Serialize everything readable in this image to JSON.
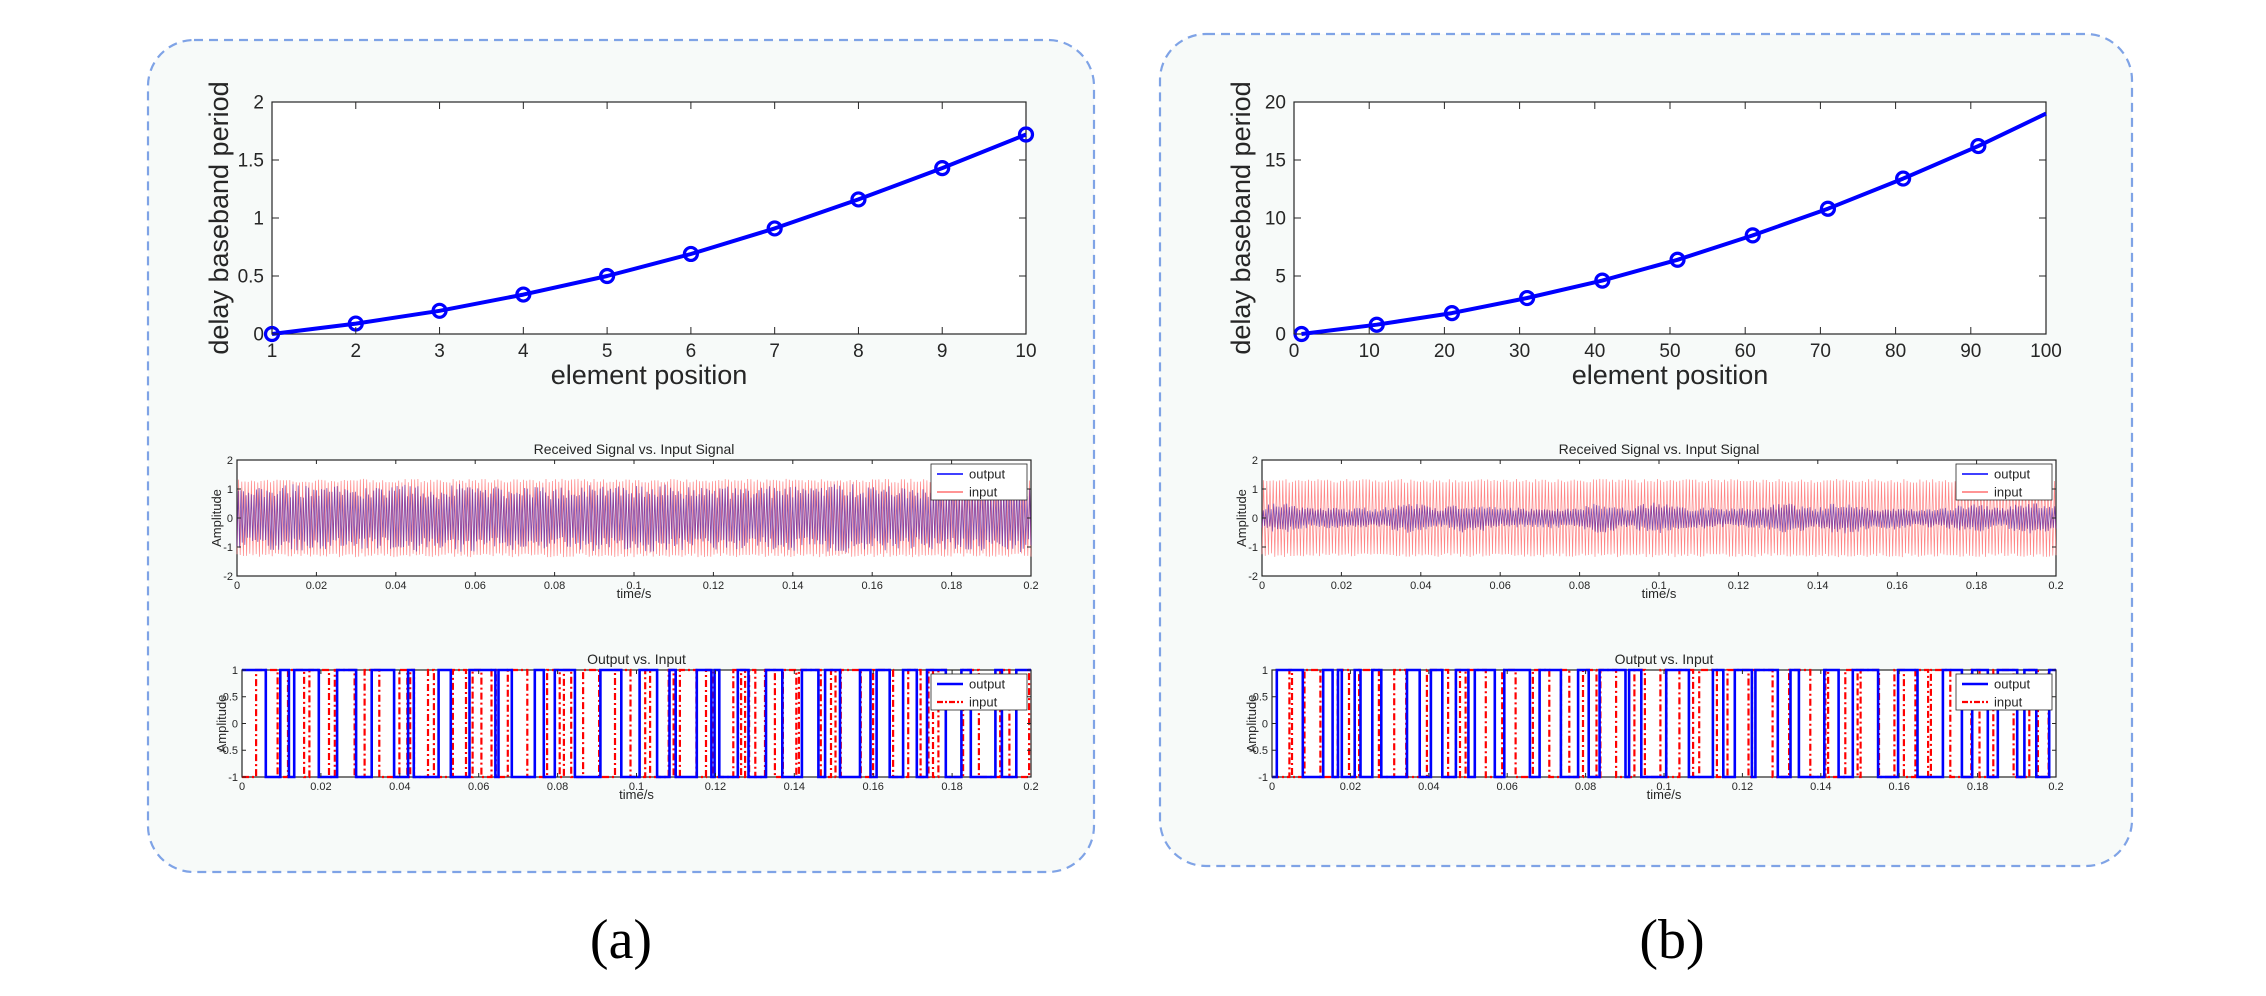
{
  "colors": {
    "panel_border": "#7fa3e6",
    "panel_fill": "#f7faf9",
    "series_blue": "#0000ff",
    "series_red": "#ff0000",
    "input_light": "#ff7070",
    "axis": "#262626"
  },
  "panels": [
    {
      "caption": "(a)",
      "chart_data": [
        {
          "type": "line",
          "title": "",
          "xlabel": "element position",
          "ylabel": "delay baseband period",
          "x": [
            1,
            2,
            3,
            4,
            5,
            6,
            7,
            8,
            9,
            10
          ],
          "series": [
            {
              "name": "delay",
              "marker": "o",
              "values": [
                0,
                0.09,
                0.2,
                0.34,
                0.5,
                0.69,
                0.91,
                1.16,
                1.43,
                1.72
              ]
            }
          ],
          "xlim": [
            1,
            10
          ],
          "ylim": [
            0,
            2
          ],
          "xticks": [
            "1",
            "2",
            "3",
            "4",
            "5",
            "6",
            "7",
            "8",
            "9",
            "10"
          ],
          "yticks": [
            "0",
            "0.5",
            "1",
            "1.5",
            "2"
          ]
        },
        {
          "type": "line",
          "title": "Received Signal vs. Input Signal",
          "xlabel": "time/s",
          "ylabel": "Amplitude",
          "xlim": [
            0,
            0.2
          ],
          "ylim": [
            -2,
            2
          ],
          "xticks": [
            "0",
            "0.02",
            "0.04",
            "0.06",
            "0.08",
            "0.1",
            "0.12",
            "0.14",
            "0.16",
            "0.18",
            "0.2"
          ],
          "yticks": [
            "-2",
            "-1",
            "0",
            "1",
            "2"
          ],
          "series": [
            {
              "name": "output",
              "style": "solid",
              "envelope_amplitude": [
                0.95,
                1.2
              ]
            },
            {
              "name": "input",
              "style": "solid",
              "envelope_amplitude": [
                1.35,
                1.35
              ]
            }
          ],
          "legend": "top-right",
          "legend_labels": [
            "output",
            "input"
          ]
        },
        {
          "type": "line",
          "title": "Output vs. Input",
          "xlabel": "time/s",
          "ylabel": "Amplitude",
          "xlim": [
            0,
            0.2
          ],
          "ylim": [
            -1,
            1
          ],
          "xticks": [
            "0",
            "0.02",
            "0.04",
            "0.06",
            "0.08",
            "0.1",
            "0.12",
            "0.14",
            "0.16",
            "0.18",
            "0.2"
          ],
          "yticks": [
            "-1",
            "-0.5",
            "0",
            "0.5",
            "1"
          ],
          "series": [
            {
              "name": "output",
              "style": "solid",
              "levels": [
                -1,
                1
              ]
            },
            {
              "name": "input",
              "style": "dash-dot",
              "levels": [
                -1,
                1
              ]
            }
          ],
          "legend": "top-right",
          "legend_labels": [
            "output",
            "input"
          ]
        }
      ]
    },
    {
      "caption": "(b)",
      "chart_data": [
        {
          "type": "line",
          "title": "",
          "xlabel": "element position",
          "ylabel": "delay baseband period",
          "x": [
            1,
            11,
            21,
            31,
            41,
            51,
            61,
            71,
            81,
            91,
            100
          ],
          "series": [
            {
              "name": "delay",
              "marker": "o",
              "marker_count": 10,
              "values": [
                0,
                0.8,
                1.8,
                3.1,
                4.6,
                6.4,
                8.5,
                10.8,
                13.4,
                16.2,
                19.0
              ]
            }
          ],
          "xlim": [
            0,
            100
          ],
          "ylim": [
            0,
            20
          ],
          "xticks": [
            "0",
            "10",
            "20",
            "30",
            "40",
            "50",
            "60",
            "70",
            "80",
            "90",
            "100"
          ],
          "yticks": [
            "0",
            "5",
            "10",
            "15",
            "20"
          ]
        },
        {
          "type": "line",
          "title": "Received Signal vs. Input Signal",
          "xlabel": "time/s",
          "ylabel": "Amplitude",
          "xlim": [
            0,
            0.2
          ],
          "ylim": [
            -2,
            2
          ],
          "xticks": [
            "0",
            "0.02",
            "0.04",
            "0.06",
            "0.08",
            "0.1",
            "0.12",
            "0.14",
            "0.16",
            "0.18",
            "0.2"
          ],
          "yticks": [
            "-2",
            "-1",
            "0",
            "1",
            "2"
          ],
          "series": [
            {
              "name": "output",
              "style": "solid",
              "envelope_amplitude": [
                0.1,
                0.55
              ]
            },
            {
              "name": "input",
              "style": "solid",
              "envelope_amplitude": [
                1.35,
                1.35
              ]
            }
          ],
          "legend": "top-right",
          "legend_labels": [
            "output",
            "input"
          ]
        },
        {
          "type": "line",
          "title": "Output vs. Input",
          "xlabel": "time/s",
          "ylabel": "Amplitude",
          "xlim": [
            0,
            0.2
          ],
          "ylim": [
            -1,
            1
          ],
          "xticks": [
            "0",
            "0.02",
            "0.04",
            "0.06",
            "0.08",
            "0.1",
            "0.12",
            "0.14",
            "0.16",
            "0.18",
            "0.2"
          ],
          "yticks": [
            "-1",
            "-0.5",
            "0",
            "0.5",
            "1"
          ],
          "series": [
            {
              "name": "output",
              "style": "solid",
              "levels": [
                -1,
                1
              ]
            },
            {
              "name": "input",
              "style": "dash-dot",
              "levels": [
                -1,
                1
              ]
            }
          ],
          "legend": "top-right",
          "legend_labels": [
            "output",
            "input"
          ]
        }
      ]
    }
  ]
}
